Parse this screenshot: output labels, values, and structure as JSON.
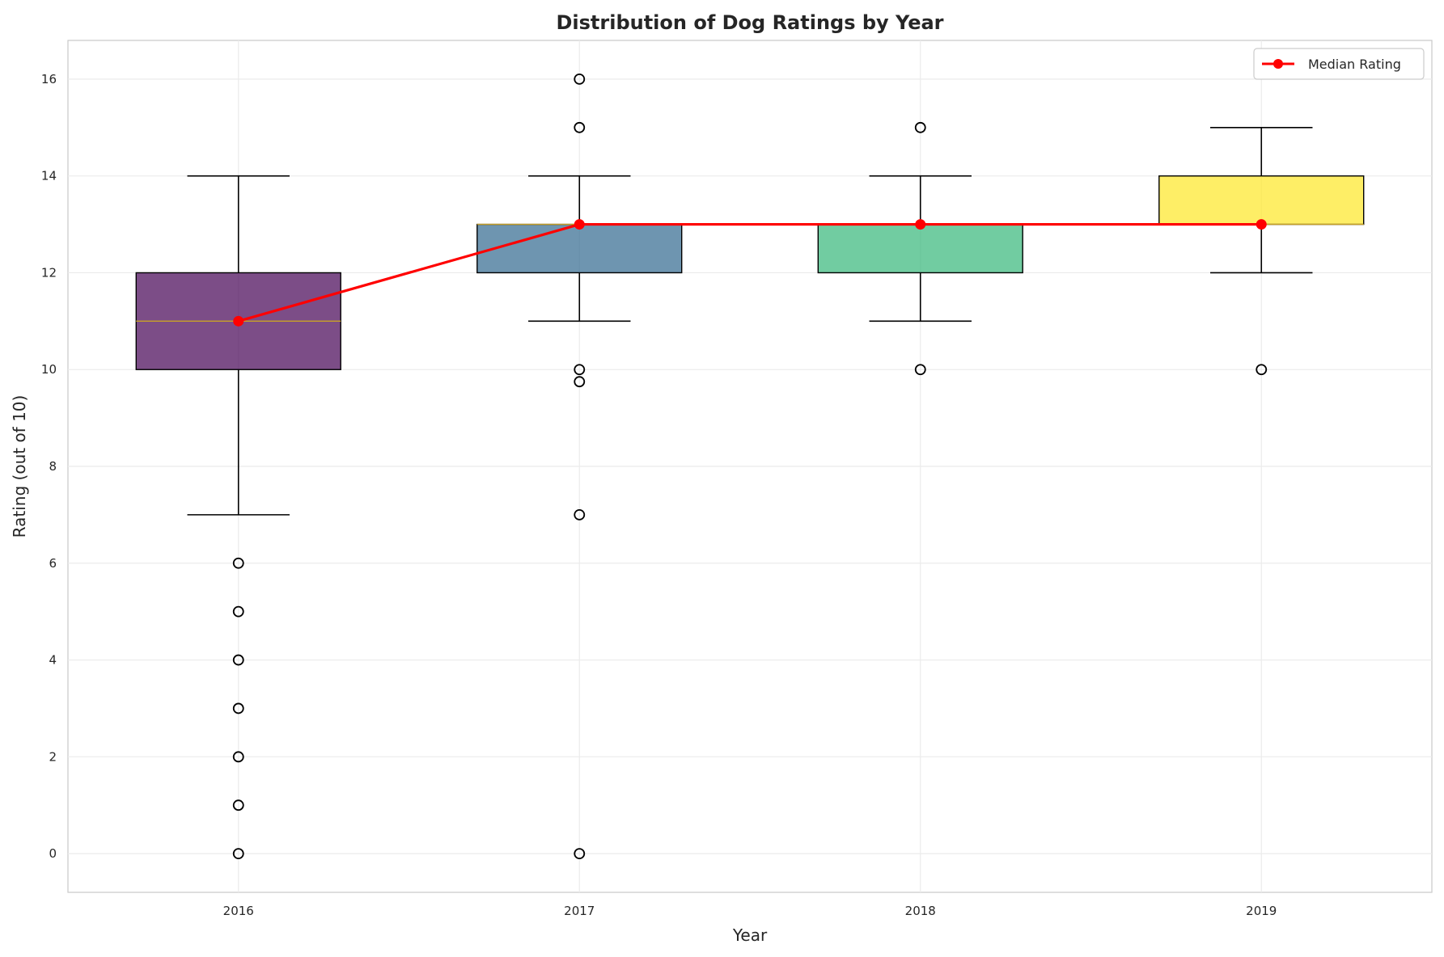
{
  "chart_data": {
    "type": "box",
    "title": "Distribution of Dog Ratings by Year",
    "xlabel": "Year",
    "ylabel": "Rating (out of 10)",
    "categories": [
      "2016",
      "2017",
      "2018",
      "2019"
    ],
    "ylim": [
      -0.8,
      16.8
    ],
    "yticks": [
      0,
      2,
      4,
      6,
      8,
      10,
      12,
      14,
      16
    ],
    "grid": true,
    "legend_position": "top-right",
    "boxes": [
      {
        "category": "2016",
        "q1": 10,
        "median": 11,
        "q3": 12,
        "whisker_low": 7,
        "whisker_high": 14,
        "fliers": [
          6,
          5,
          4,
          3,
          2,
          1,
          0
        ],
        "color": "#440154"
      },
      {
        "category": "2017",
        "q1": 12,
        "median": 13,
        "q3": 13,
        "whisker_low": 11,
        "whisker_high": 14,
        "fliers": [
          16,
          15,
          10,
          9.75,
          7,
          0
        ],
        "color": "#31688e"
      },
      {
        "category": "2018",
        "q1": 12,
        "median": 13,
        "q3": 13,
        "whisker_low": 11,
        "whisker_high": 14,
        "fliers": [
          15,
          10
        ],
        "color": "#35b779"
      },
      {
        "category": "2019",
        "q1": 13,
        "median": 13,
        "q3": 14,
        "whisker_low": 12,
        "whisker_high": 15,
        "fliers": [
          10
        ],
        "color": "#fde725"
      }
    ],
    "series": [
      {
        "name": "Median Rating",
        "type": "line",
        "values": [
          11,
          13,
          13,
          13
        ],
        "color": "#ff0000"
      }
    ],
    "median_line_color": "#c9a227"
  }
}
